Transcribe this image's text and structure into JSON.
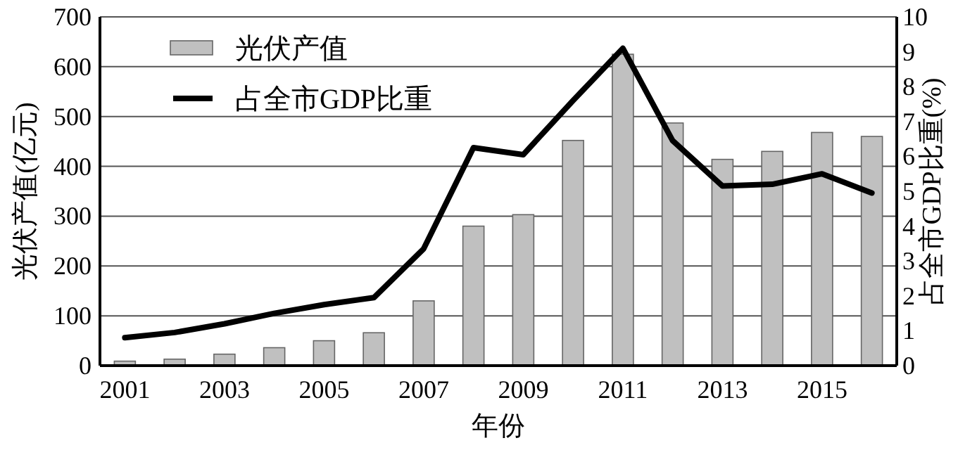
{
  "chart_data": {
    "type": "bar",
    "xlabel": "年份",
    "ylabel": "光伏产值(亿元)",
    "y2label": "占全市GDP比重(%)",
    "categories": [
      "2001",
      null,
      "2003",
      null,
      "2005",
      null,
      "2007",
      null,
      "2009",
      null,
      "2011",
      null,
      "2013",
      null,
      "2015",
      null
    ],
    "series": [
      {
        "name": "光伏产值",
        "color": "#c0c0c0",
        "values": [
          9,
          13,
          23,
          36,
          50,
          66,
          130,
          280,
          303,
          452,
          625,
          487,
          414,
          430,
          468,
          460
        ]
      },
      {
        "name": "占全市GDP比重",
        "type": "line",
        "axis": "y2",
        "color": "#000000",
        "values": [
          0.8,
          0.95,
          1.2,
          1.5,
          1.75,
          1.95,
          3.35,
          6.25,
          6.05,
          7.6,
          9.1,
          6.45,
          5.15,
          5.2,
          5.5,
          4.95
        ]
      }
    ],
    "ylim": [
      0,
      700
    ],
    "yticks": [
      0,
      100,
      200,
      300,
      400,
      500,
      600,
      700
    ],
    "y2lim": [
      0,
      10
    ],
    "y2ticks": [
      0,
      1,
      2,
      3,
      4,
      5,
      6,
      7,
      8,
      9,
      10
    ],
    "grid": "y",
    "legend": "top left"
  }
}
